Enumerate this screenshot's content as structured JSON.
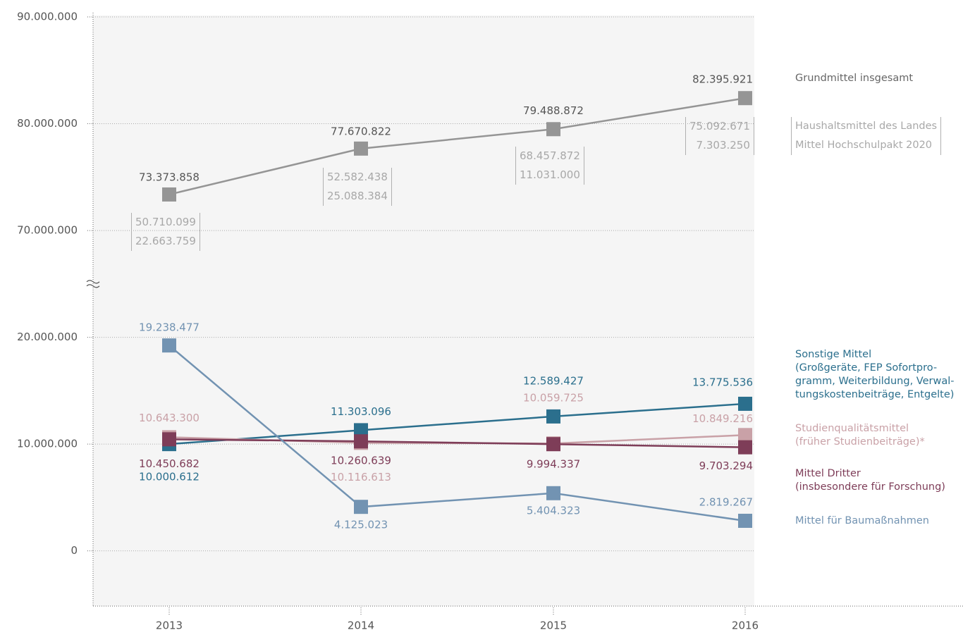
{
  "chart_data": {
    "type": "line",
    "categories": [
      "2013",
      "2014",
      "2015",
      "2016"
    ],
    "ylim": [
      -5300000,
      90000000
    ],
    "axis_break": [
      25000000,
      65000000
    ],
    "yticks": [
      0,
      {
        "value": 10000000,
        "label": "10.000.000"
      },
      {
        "value": 20000000,
        "label": "20.000.000"
      },
      {
        "value": 70000000,
        "label": "70.000.000"
      },
      {
        "value": 80000000,
        "label": "80.000.000"
      },
      {
        "value": 90000000,
        "label": "90.000.000"
      }
    ],
    "grid": true,
    "series": [
      {
        "name": "Grundmittel insgesamt",
        "color": "#959595",
        "label_color": "#555555",
        "values": [
          73373858,
          77670822,
          79488872,
          82395921
        ],
        "value_labels": [
          "73.373.858",
          "77.670.822",
          "79.488.872",
          "82.395.921"
        ]
      },
      {
        "name": "Sonstige Mittel\n(Großgeräte, FEP Sofortpro-\ngramm, Weiterbildung, Verwal-\ntungskostenbeiträge, Entgelte)",
        "color": "#2b6f8d",
        "values": [
          10000612,
          11303096,
          12589427,
          13775536
        ],
        "value_labels": [
          "10.000.612",
          "11.303.096",
          "12.589.427",
          "13.775.536"
        ]
      },
      {
        "name": "Studienqualitätsmittel\n(früher Studienbeiträge)*",
        "color": "#c9a1a7",
        "values": [
          10643300,
          10116613,
          10059725,
          10849216
        ],
        "value_labels": [
          "10.643.300",
          "10.116.613",
          "10.059.725",
          "10.849.216"
        ]
      },
      {
        "name": "Mittel Dritter\n(insbesondere für Forschung)",
        "color": "#7e3d58",
        "values": [
          10450682,
          10260639,
          9994337,
          9703294
        ],
        "value_labels": [
          "10.450.682",
          "10.260.639",
          "9.994.337",
          "9.703.294"
        ]
      },
      {
        "name": "Mittel für Baumaßnahmen",
        "color": "#7293b2",
        "values": [
          19238477,
          4125023,
          5404323,
          2819267
        ],
        "value_labels": [
          "19.238.477",
          "4.125.023",
          "5.404.323",
          "2.819.267"
        ]
      }
    ],
    "breakdown": [
      {
        "name": "Haushaltsmittel des Landes",
        "values": [
          50710099,
          52582438,
          68457872,
          75092671
        ],
        "value_labels": [
          "50.710.099",
          "52.582.438",
          "68.457.872",
          "75.092.671"
        ]
      },
      {
        "name": "Mittel Hochschulpakt 2020",
        "values": [
          22663759,
          25088384,
          11031000,
          7303250
        ],
        "value_labels": [
          "22.663.759",
          "25.088.384",
          "11.031.000",
          "7.303.250"
        ]
      }
    ]
  }
}
